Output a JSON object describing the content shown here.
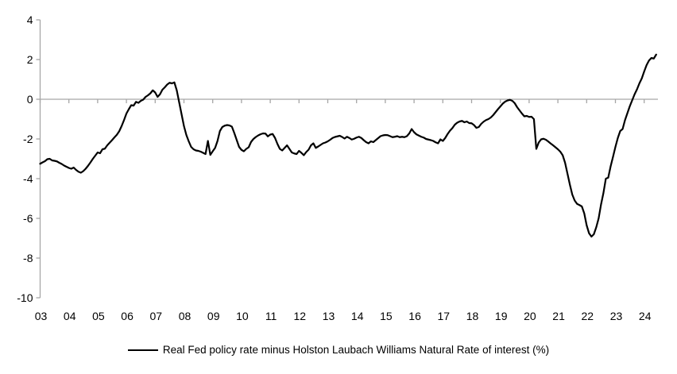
{
  "legend": {
    "label": "Real Fed policy rate minus Holston Laubach Williams Natural Rate of interest (%)"
  },
  "chart_data": {
    "type": "line",
    "title": "",
    "xlabel": "",
    "ylabel": "",
    "frequency": "monthly",
    "x_start": "2003-01",
    "x_end": "2024-06",
    "x_tick_labels": [
      "03",
      "04",
      "05",
      "06",
      "07",
      "08",
      "09",
      "10",
      "11",
      "12",
      "13",
      "14",
      "15",
      "16",
      "17",
      "18",
      "19",
      "20",
      "21",
      "22",
      "23",
      "24"
    ],
    "y_tick_labels": [
      "4",
      "2",
      "0",
      "-2",
      "-4",
      "-6",
      "-8",
      "-10"
    ],
    "y_ticks": [
      4,
      2,
      0,
      -2,
      -4,
      -6,
      -8,
      -10
    ],
    "ylim": [
      -10,
      4
    ],
    "grid": "zero-line-only",
    "legend_position": "bottom-center",
    "line_color": "#000000",
    "axis_color": "#a6a6a6",
    "series": [
      {
        "name": "Real Fed policy rate minus Holston Laubach Williams Natural Rate of interest (%)",
        "values": [
          -3.25,
          -3.18,
          -3.12,
          -3.02,
          -3.0,
          -3.08,
          -3.1,
          -3.13,
          -3.2,
          -3.26,
          -3.34,
          -3.4,
          -3.46,
          -3.5,
          -3.44,
          -3.56,
          -3.65,
          -3.7,
          -3.62,
          -3.5,
          -3.35,
          -3.18,
          -3.0,
          -2.84,
          -2.68,
          -2.72,
          -2.52,
          -2.49,
          -2.32,
          -2.19,
          -2.06,
          -1.92,
          -1.79,
          -1.61,
          -1.35,
          -1.05,
          -0.72,
          -0.5,
          -0.3,
          -0.32,
          -0.13,
          -0.18,
          -0.08,
          -0.02,
          0.12,
          0.2,
          0.3,
          0.45,
          0.34,
          0.12,
          0.25,
          0.48,
          0.6,
          0.74,
          0.83,
          0.8,
          0.85,
          0.45,
          -0.15,
          -0.75,
          -1.35,
          -1.8,
          -2.12,
          -2.4,
          -2.52,
          -2.58,
          -2.6,
          -2.64,
          -2.7,
          -2.76,
          -2.1,
          -2.8,
          -2.62,
          -2.45,
          -2.1,
          -1.6,
          -1.4,
          -1.33,
          -1.3,
          -1.32,
          -1.38,
          -1.7,
          -2.05,
          -2.4,
          -2.55,
          -2.62,
          -2.5,
          -2.42,
          -2.15,
          -2.0,
          -1.9,
          -1.82,
          -1.76,
          -1.72,
          -1.73,
          -1.87,
          -1.78,
          -1.75,
          -1.95,
          -2.25,
          -2.5,
          -2.58,
          -2.45,
          -2.32,
          -2.5,
          -2.68,
          -2.73,
          -2.76,
          -2.6,
          -2.7,
          -2.82,
          -2.66,
          -2.54,
          -2.32,
          -2.22,
          -2.45,
          -2.38,
          -2.3,
          -2.22,
          -2.18,
          -2.12,
          -2.04,
          -1.95,
          -1.9,
          -1.87,
          -1.84,
          -1.9,
          -1.98,
          -1.89,
          -1.95,
          -2.03,
          -1.99,
          -1.93,
          -1.89,
          -1.95,
          -2.06,
          -2.16,
          -2.22,
          -2.12,
          -2.16,
          -2.06,
          -1.96,
          -1.86,
          -1.82,
          -1.8,
          -1.81,
          -1.86,
          -1.91,
          -1.89,
          -1.86,
          -1.91,
          -1.89,
          -1.91,
          -1.86,
          -1.72,
          -1.5,
          -1.66,
          -1.77,
          -1.83,
          -1.89,
          -1.93,
          -2.0,
          -2.03,
          -2.06,
          -2.1,
          -2.17,
          -2.22,
          -2.02,
          -2.1,
          -1.95,
          -1.75,
          -1.58,
          -1.45,
          -1.28,
          -1.18,
          -1.12,
          -1.09,
          -1.16,
          -1.12,
          -1.2,
          -1.21,
          -1.3,
          -1.44,
          -1.4,
          -1.24,
          -1.13,
          -1.05,
          -1.0,
          -0.92,
          -0.8,
          -0.65,
          -0.5,
          -0.36,
          -0.22,
          -0.12,
          -0.06,
          -0.03,
          -0.08,
          -0.2,
          -0.4,
          -0.56,
          -0.72,
          -0.86,
          -0.84,
          -0.89,
          -0.88,
          -1.0,
          -2.5,
          -2.18,
          -2.02,
          -1.99,
          -2.04,
          -2.13,
          -2.23,
          -2.32,
          -2.42,
          -2.52,
          -2.64,
          -2.82,
          -3.2,
          -3.75,
          -4.3,
          -4.8,
          -5.1,
          -5.27,
          -5.33,
          -5.4,
          -5.75,
          -6.35,
          -6.75,
          -6.92,
          -6.8,
          -6.45,
          -6.0,
          -5.3,
          -4.72,
          -4.0,
          -3.95,
          -3.38,
          -2.9,
          -2.4,
          -1.95,
          -1.6,
          -1.5,
          -1.05,
          -0.7,
          -0.35,
          -0.05,
          0.25,
          0.5,
          0.8,
          1.05,
          1.4,
          1.72,
          1.95,
          2.08,
          2.05,
          2.25
        ]
      }
    ]
  }
}
